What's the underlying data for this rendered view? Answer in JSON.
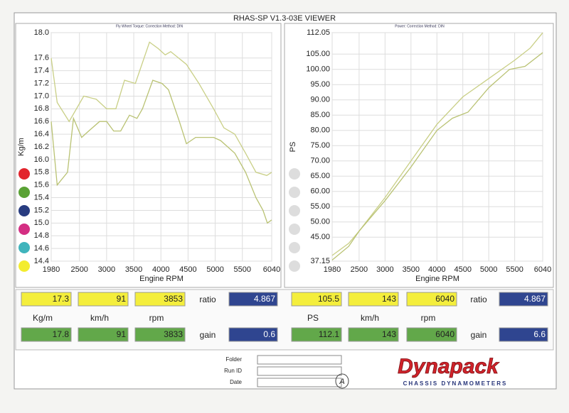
{
  "title": "RHAS-SP V1.3-03E VIEWER",
  "chart_data": [
    {
      "type": "line",
      "subtitle": "Fly Wheel Torque:    Correction Method: DIN",
      "y_label": "Kg/m",
      "x_label": "Engine RPM",
      "xlim": [
        1980,
        6040
      ],
      "xticks": [
        1980,
        2500,
        3000,
        3500,
        4000,
        4500,
        5000,
        5500,
        6040
      ],
      "ylim": [
        14.4,
        18.0
      ],
      "yticks": [
        {
          "value": 18.0,
          "label": "18.0"
        },
        17.6,
        17.4,
        17.2,
        {
          "value": 17.0,
          "label": "17.0"
        },
        16.8,
        16.6,
        16.4,
        16.2,
        {
          "value": 16.0,
          "label": "16.0"
        },
        15.8,
        15.6,
        15.4,
        15.2,
        {
          "value": 15.0,
          "label": "15.0"
        },
        14.8,
        14.6,
        14.4
      ],
      "grid": true,
      "series": [
        {
          "color": "#c9cf86",
          "x": [
            1980,
            2090,
            2310,
            2580,
            2810,
            3000,
            3170,
            3330,
            3530,
            3790,
            3950,
            4080,
            4180,
            4470,
            4700,
            4970,
            5160,
            5360,
            5560,
            5750,
            5950,
            6040
          ],
          "values": [
            17.6,
            16.9,
            16.6,
            17.0,
            16.95,
            16.8,
            16.8,
            17.25,
            17.2,
            17.85,
            17.75,
            17.65,
            17.7,
            17.5,
            17.2,
            16.8,
            16.5,
            16.4,
            16.1,
            15.8,
            15.75,
            15.8
          ]
        },
        {
          "color": "#b9c273",
          "x": [
            1980,
            2090,
            2280,
            2390,
            2540,
            2670,
            2870,
            3000,
            3130,
            3260,
            3420,
            3560,
            3660,
            3850,
            4020,
            4140,
            4340,
            4470,
            4640,
            4970,
            5100,
            5360,
            5560,
            5750,
            5880,
            5960,
            6040
          ],
          "values": [
            16.6,
            15.6,
            15.8,
            16.65,
            16.35,
            16.45,
            16.6,
            16.6,
            16.45,
            16.45,
            16.7,
            16.65,
            16.8,
            17.25,
            17.2,
            17.1,
            16.6,
            16.25,
            16.35,
            16.35,
            16.3,
            16.1,
            15.8,
            15.4,
            15.2,
            15.0,
            15.05
          ]
        }
      ]
    },
    {
      "type": "line",
      "subtitle": "Power:    Correction Method: DIN",
      "y_label": "PS",
      "x_label": "Engine RPM",
      "xlim": [
        1980,
        6040
      ],
      "xticks": [
        1980,
        2500,
        3000,
        3500,
        4000,
        4500,
        5000,
        5500,
        6040
      ],
      "ylim": [
        37.15,
        112.05
      ],
      "yticks": [
        112.05,
        {
          "value": 105,
          "label": "105.00"
        },
        {
          "value": 100,
          "label": "100.00"
        },
        {
          "value": 95,
          "label": "95.00"
        },
        {
          "value": 90,
          "label": "90.00"
        },
        {
          "value": 85,
          "label": "85.00"
        },
        {
          "value": 80,
          "label": "80.00"
        },
        {
          "value": 75,
          "label": "75.00"
        },
        {
          "value": 70,
          "label": "70.00"
        },
        {
          "value": 65,
          "label": "65.00"
        },
        {
          "value": 60,
          "label": "60.00"
        },
        {
          "value": 55,
          "label": "55.00"
        },
        {
          "value": 50,
          "label": "50.00"
        },
        {
          "value": 45,
          "label": "45.00"
        },
        37.15
      ],
      "grid": true,
      "series": [
        {
          "color": "#c9cf86",
          "x": [
            1980,
            2300,
            2500,
            3000,
            3500,
            4000,
            4500,
            5000,
            5500,
            5800,
            6040
          ],
          "values": [
            39,
            43,
            47,
            58,
            70,
            82,
            91,
            97,
            103,
            107,
            112
          ]
        },
        {
          "color": "#b9c273",
          "x": [
            1980,
            2300,
            2500,
            3000,
            3500,
            4000,
            4300,
            4600,
            5000,
            5400,
            5700,
            6040
          ],
          "values": [
            37.5,
            42,
            47,
            57,
            68,
            80,
            84,
            86,
            94,
            100,
            101,
            105.5
          ]
        }
      ]
    }
  ],
  "readouts": [
    {
      "top": [
        17.3,
        91,
        3853
      ],
      "ratio_label": "ratio",
      "ratio": 4.867,
      "units": [
        "Kg/m",
        "km/h",
        "rpm"
      ],
      "bottom": [
        17.8,
        91,
        3833
      ],
      "gain_label": "gain",
      "gain": 0.6
    },
    {
      "top": [
        105.5,
        143,
        6040
      ],
      "ratio_label": "ratio",
      "ratio": 4.867,
      "units": [
        "PS",
        "km/h",
        "rpm"
      ],
      "bottom": [
        112.1,
        143,
        6040
      ],
      "gain_label": "gain",
      "gain": 6.6
    }
  ],
  "footer": {
    "fields": [
      "Folder",
      "Run ID",
      "Date"
    ],
    "mark": "A",
    "brand": "Dynapack",
    "brand_sub": "CHASSIS DYNAMOMETERS"
  }
}
